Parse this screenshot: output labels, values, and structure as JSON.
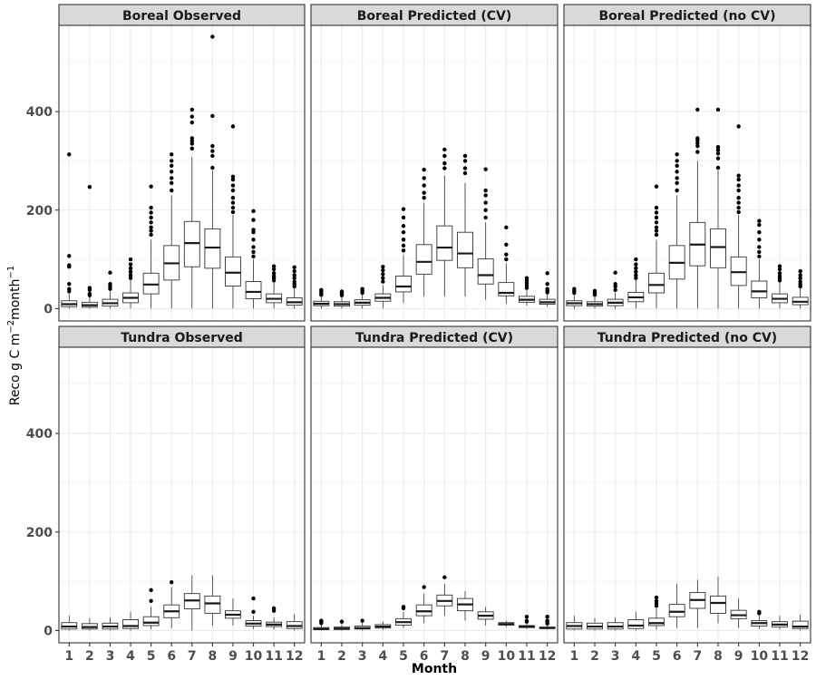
{
  "chart_data": {
    "type": "boxplot",
    "xlabel": "Month",
    "ylabel": "Reco g C m",
    "ylabel_sup1": "−2",
    "ylabel_mid": "month",
    "ylabel_sup2": "−1",
    "ylim": [
      -25,
      575
    ],
    "yticks": [
      0,
      200,
      400
    ],
    "categories": [
      "1",
      "2",
      "3",
      "4",
      "5",
      "6",
      "7",
      "8",
      "9",
      "10",
      "11",
      "12"
    ],
    "grid": true,
    "panels": [
      {
        "title": "Boreal Observed",
        "boxes": [
          {
            "whislo": 0,
            "q1": 4,
            "med": 9,
            "q3": 16,
            "whishi": 30,
            "outliers": [
              35,
              40,
              50,
              85,
              88,
              107,
              313
            ]
          },
          {
            "whislo": 0,
            "q1": 3,
            "med": 7,
            "q3": 13,
            "whishi": 24,
            "outliers": [
              27,
              30,
              38,
              42,
              247
            ]
          },
          {
            "whislo": 0,
            "q1": 5,
            "med": 11,
            "q3": 19,
            "whishi": 35,
            "outliers": [
              40,
              45,
              50,
              73
            ]
          },
          {
            "whislo": 0,
            "q1": 12,
            "med": 22,
            "q3": 32,
            "whishi": 58,
            "outliers": [
              62,
              68,
              75,
              82,
              90,
              100
            ]
          },
          {
            "whislo": 0,
            "q1": 30,
            "med": 49,
            "q3": 72,
            "whishi": 140,
            "outliers": [
              150,
              158,
              165,
              175,
              185,
              195,
              205,
              248
            ]
          },
          {
            "whislo": 0,
            "q1": 58,
            "med": 92,
            "q3": 128,
            "whishi": 230,
            "outliers": [
              240,
              255,
              265,
              278,
              290,
              300,
              313
            ]
          },
          {
            "whislo": 0,
            "q1": 85,
            "med": 133,
            "q3": 177,
            "whishi": 308,
            "outliers": [
              325,
              335,
              340,
              346,
              378,
              390,
              404
            ]
          },
          {
            "whislo": 0,
            "q1": 82,
            "med": 124,
            "q3": 162,
            "whishi": 280,
            "outliers": [
              286,
              310,
              320,
              330,
              391,
              552
            ]
          },
          {
            "whislo": 0,
            "q1": 46,
            "med": 73,
            "q3": 105,
            "whishi": 190,
            "outliers": [
              196,
              205,
              215,
              225,
              240,
              250,
              262,
              268,
              370
            ]
          },
          {
            "whislo": 0,
            "q1": 20,
            "med": 34,
            "q3": 55,
            "whishi": 100,
            "outliers": [
              106,
              115,
              125,
              140,
              155,
              160,
              180,
              198
            ]
          },
          {
            "whislo": 0,
            "q1": 12,
            "med": 20,
            "q3": 30,
            "whishi": 52,
            "outliers": [
              57,
              62,
              66,
              72,
              80,
              86
            ]
          },
          {
            "whislo": 0,
            "q1": 7,
            "med": 13,
            "q3": 22,
            "whishi": 42,
            "outliers": [
              45,
              50,
              55,
              62,
              68,
              76,
              84
            ]
          }
        ]
      },
      {
        "title": "Boreal Predicted (CV)",
        "boxes": [
          {
            "whislo": 0,
            "q1": 6,
            "med": 10,
            "q3": 15,
            "whishi": 25,
            "outliers": [
              28,
              31,
              35,
              38
            ]
          },
          {
            "whislo": 0,
            "q1": 5,
            "med": 9,
            "q3": 14,
            "whishi": 24,
            "outliers": [
              27,
              30,
              33,
              35
            ]
          },
          {
            "whislo": 0,
            "q1": 7,
            "med": 12,
            "q3": 18,
            "whishi": 29,
            "outliers": [
              32,
              36,
              40
            ]
          },
          {
            "whislo": 0,
            "q1": 15,
            "med": 22,
            "q3": 30,
            "whishi": 48,
            "outliers": [
              55,
              62,
              70,
              78,
              85
            ]
          },
          {
            "whislo": 12,
            "q1": 34,
            "med": 45,
            "q3": 66,
            "whishi": 110,
            "outliers": [
              118,
              128,
              140,
              155,
              168,
              185,
              202
            ]
          },
          {
            "whislo": 25,
            "q1": 70,
            "med": 95,
            "q3": 130,
            "whishi": 215,
            "outliers": [
              225,
              235,
              250,
              265,
              282
            ]
          },
          {
            "whislo": 25,
            "q1": 98,
            "med": 124,
            "q3": 168,
            "whishi": 270,
            "outliers": [
              285,
              295,
              310,
              323
            ]
          },
          {
            "whislo": 25,
            "q1": 83,
            "med": 112,
            "q3": 155,
            "whishi": 255,
            "outliers": [
              275,
              285,
              300,
              310
            ]
          },
          {
            "whislo": 18,
            "q1": 50,
            "med": 68,
            "q3": 101,
            "whishi": 175,
            "outliers": [
              185,
              200,
              215,
              230,
              240,
              283
            ]
          },
          {
            "whislo": 10,
            "q1": 26,
            "med": 32,
            "q3": 53,
            "whishi": 92,
            "outliers": [
              100,
              110,
              130,
              165
            ]
          },
          {
            "whislo": 6,
            "q1": 13,
            "med": 18,
            "q3": 25,
            "whishi": 38,
            "outliers": [
              42,
              47,
              52,
              57,
              62
            ]
          },
          {
            "whislo": 4,
            "q1": 9,
            "med": 13,
            "q3": 19,
            "whishi": 30,
            "outliers": [
              33,
              36,
              40,
              50,
              72
            ]
          }
        ]
      },
      {
        "title": "Boreal Predicted (no CV)",
        "boxes": [
          {
            "whislo": 0,
            "q1": 6,
            "med": 11,
            "q3": 16,
            "whishi": 28,
            "outliers": [
              32,
              36,
              40
            ]
          },
          {
            "whislo": 0,
            "q1": 5,
            "med": 9,
            "q3": 14,
            "whishi": 24,
            "outliers": [
              28,
              31,
              34,
              36
            ]
          },
          {
            "whislo": 0,
            "q1": 6,
            "med": 12,
            "q3": 19,
            "whishi": 33,
            "outliers": [
              38,
              45,
              50,
              73
            ]
          },
          {
            "whislo": 0,
            "q1": 14,
            "med": 23,
            "q3": 33,
            "whishi": 58,
            "outliers": [
              62,
              68,
              75,
              82,
              90,
              100
            ]
          },
          {
            "whislo": 0,
            "q1": 32,
            "med": 48,
            "q3": 72,
            "whishi": 140,
            "outliers": [
              150,
              158,
              165,
              175,
              185,
              195,
              205,
              248
            ]
          },
          {
            "whislo": 0,
            "q1": 60,
            "med": 93,
            "q3": 128,
            "whishi": 230,
            "outliers": [
              240,
              255,
              265,
              278,
              290,
              300,
              313
            ]
          },
          {
            "whislo": 0,
            "q1": 87,
            "med": 130,
            "q3": 175,
            "whishi": 300,
            "outliers": [
              318,
              330,
              336,
              342,
              346,
              404
            ]
          },
          {
            "whislo": 0,
            "q1": 83,
            "med": 125,
            "q3": 162,
            "whishi": 280,
            "outliers": [
              286,
              305,
              315,
              322,
              328,
              404
            ]
          },
          {
            "whislo": 0,
            "q1": 47,
            "med": 74,
            "q3": 105,
            "whishi": 190,
            "outliers": [
              196,
              205,
              215,
              225,
              240,
              250,
              262,
              270,
              370
            ]
          },
          {
            "whislo": 0,
            "q1": 22,
            "med": 35,
            "q3": 56,
            "whishi": 100,
            "outliers": [
              106,
              115,
              125,
              140,
              155,
              170,
              178
            ]
          },
          {
            "whislo": 0,
            "q1": 12,
            "med": 20,
            "q3": 30,
            "whishi": 52,
            "outliers": [
              57,
              62,
              66,
              72,
              80,
              86
            ]
          },
          {
            "whislo": 0,
            "q1": 8,
            "med": 14,
            "q3": 23,
            "whishi": 42,
            "outliers": [
              45,
              50,
              55,
              62,
              68,
              76
            ]
          }
        ]
      },
      {
        "title": "Tundra Observed",
        "boxes": [
          {
            "whislo": 0,
            "q1": 3,
            "med": 8,
            "q3": 16,
            "whishi": 30,
            "outliers": []
          },
          {
            "whislo": 0,
            "q1": 3,
            "med": 7,
            "q3": 14,
            "whishi": 25,
            "outliers": []
          },
          {
            "whislo": 0,
            "q1": 3,
            "med": 8,
            "q3": 15,
            "whishi": 27,
            "outliers": []
          },
          {
            "whislo": 0,
            "q1": 4,
            "med": 9,
            "q3": 22,
            "whishi": 38,
            "outliers": []
          },
          {
            "whislo": 2,
            "q1": 10,
            "med": 16,
            "q3": 28,
            "whishi": 48,
            "outliers": [
              60,
              82
            ]
          },
          {
            "whislo": 5,
            "q1": 26,
            "med": 39,
            "q3": 52,
            "whishi": 88,
            "outliers": [
              98
            ]
          },
          {
            "whislo": 0,
            "q1": 44,
            "med": 61,
            "q3": 75,
            "whishi": 112,
            "outliers": []
          },
          {
            "whislo": 10,
            "q1": 35,
            "med": 55,
            "q3": 70,
            "whishi": 112,
            "outliers": []
          },
          {
            "whislo": 10,
            "q1": 25,
            "med": 32,
            "q3": 40,
            "whishi": 65,
            "outliers": []
          },
          {
            "whislo": 3,
            "q1": 9,
            "med": 14,
            "q3": 20,
            "whishi": 30,
            "outliers": [
              38,
              65
            ]
          },
          {
            "whislo": 2,
            "q1": 8,
            "med": 12,
            "q3": 17,
            "whishi": 27,
            "outliers": [
              40,
              45
            ]
          },
          {
            "whislo": 0,
            "q1": 4,
            "med": 9,
            "q3": 18,
            "whishi": 33,
            "outliers": []
          }
        ]
      },
      {
        "title": "Tundra Predicted (CV)",
        "boxes": [
          {
            "whislo": 0,
            "q1": 2,
            "med": 3,
            "q3": 6,
            "whishi": 12,
            "outliers": [
              15,
              18,
              20
            ]
          },
          {
            "whislo": 0,
            "q1": 2,
            "med": 4,
            "q3": 7,
            "whishi": 13,
            "outliers": [
              18
            ]
          },
          {
            "whislo": 0,
            "q1": 3,
            "med": 5,
            "q3": 9,
            "whishi": 16,
            "outliers": [
              20
            ]
          },
          {
            "whislo": 1,
            "q1": 5,
            "med": 8,
            "q3": 12,
            "whishi": 18,
            "outliers": []
          },
          {
            "whislo": 5,
            "q1": 11,
            "med": 17,
            "q3": 24,
            "whishi": 38,
            "outliers": [
              45,
              48
            ]
          },
          {
            "whislo": 15,
            "q1": 30,
            "med": 39,
            "q3": 52,
            "whishi": 75,
            "outliers": [
              88
            ]
          },
          {
            "whislo": 30,
            "q1": 50,
            "med": 60,
            "q3": 72,
            "whishi": 95,
            "outliers": [
              108
            ]
          },
          {
            "whislo": 20,
            "q1": 40,
            "med": 53,
            "q3": 65,
            "whishi": 80,
            "outliers": []
          },
          {
            "whislo": 10,
            "q1": 23,
            "med": 30,
            "q3": 38,
            "whishi": 48,
            "outliers": []
          },
          {
            "whislo": 7,
            "q1": 11,
            "med": 13,
            "q3": 16,
            "whishi": 20,
            "outliers": []
          },
          {
            "whislo": 3,
            "q1": 6,
            "med": 8,
            "q3": 10,
            "whishi": 14,
            "outliers": [
              18,
              20,
              28
            ]
          },
          {
            "whislo": 2,
            "q1": 4,
            "med": 5,
            "q3": 7,
            "whishi": 10,
            "outliers": [
              14,
              18,
              20,
              28
            ]
          }
        ]
      },
      {
        "title": "Tundra Predicted (no CV)",
        "boxes": [
          {
            "whislo": 0,
            "q1": 3,
            "med": 9,
            "q3": 16,
            "whishi": 30,
            "outliers": []
          },
          {
            "whislo": 0,
            "q1": 3,
            "med": 8,
            "q3": 15,
            "whishi": 25,
            "outliers": []
          },
          {
            "whislo": 0,
            "q1": 3,
            "med": 8,
            "q3": 16,
            "whishi": 27,
            "outliers": []
          },
          {
            "whislo": 0,
            "q1": 4,
            "med": 10,
            "q3": 22,
            "whishi": 38,
            "outliers": []
          },
          {
            "whislo": 2,
            "q1": 10,
            "med": 15,
            "q3": 25,
            "whishi": 45,
            "outliers": [
              50,
              55,
              60,
              67
            ]
          },
          {
            "whislo": 5,
            "q1": 28,
            "med": 38,
            "q3": 53,
            "whishi": 95,
            "outliers": []
          },
          {
            "whislo": 5,
            "q1": 45,
            "med": 62,
            "q3": 77,
            "whishi": 103,
            "outliers": []
          },
          {
            "whislo": 15,
            "q1": 35,
            "med": 56,
            "q3": 70,
            "whishi": 110,
            "outliers": []
          },
          {
            "whislo": 5,
            "q1": 24,
            "med": 31,
            "q3": 41,
            "whishi": 65,
            "outliers": []
          },
          {
            "whislo": 3,
            "q1": 9,
            "med": 15,
            "q3": 20,
            "whishi": 30,
            "outliers": [
              35,
              38
            ]
          },
          {
            "whislo": 2,
            "q1": 7,
            "med": 12,
            "q3": 18,
            "whishi": 30,
            "outliers": []
          },
          {
            "whislo": 0,
            "q1": 4,
            "med": 8,
            "q3": 19,
            "whishi": 32,
            "outliers": []
          }
        ]
      }
    ]
  }
}
